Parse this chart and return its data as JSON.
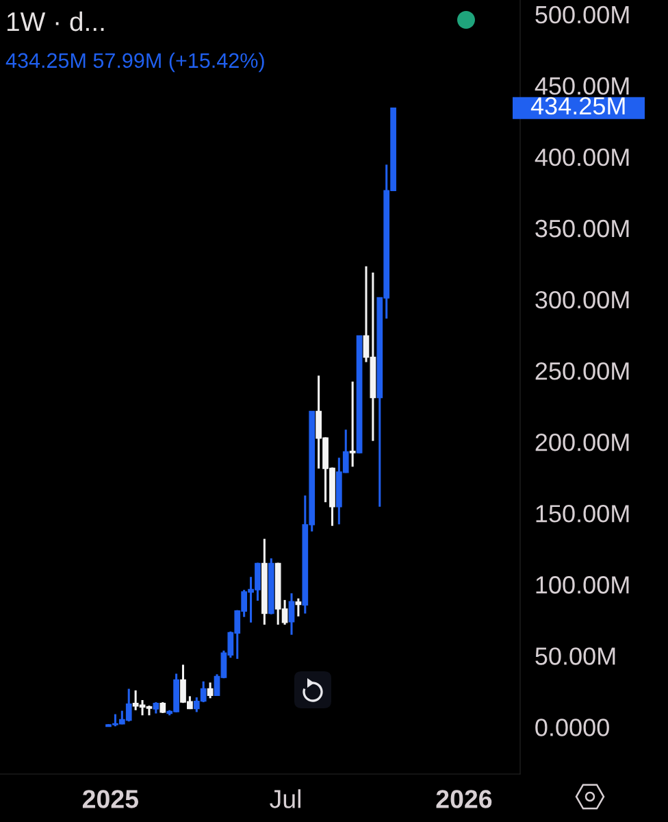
{
  "chart_data": {
    "type": "candlestick",
    "title": "1W · d...",
    "subtitle": "434.25M 57.99M (+15.42%)",
    "x": [
      "2024-12-30",
      "2025-01-06",
      "2025-01-13",
      "2025-01-20",
      "2025-01-27",
      "2025-02-03",
      "2025-02-10",
      "2025-02-17",
      "2025-02-24",
      "2025-03-03",
      "2025-03-10",
      "2025-03-17",
      "2025-03-24",
      "2025-03-31",
      "2025-04-07",
      "2025-04-14",
      "2025-04-21",
      "2025-04-28",
      "2025-05-05",
      "2025-05-12",
      "2025-05-19",
      "2025-05-26",
      "2025-06-02",
      "2025-06-09",
      "2025-06-16",
      "2025-06-23",
      "2025-06-30",
      "2025-07-07",
      "2025-07-14",
      "2025-07-21",
      "2025-07-28",
      "2025-08-04",
      "2025-08-11",
      "2025-08-18",
      "2025-08-25",
      "2025-09-01",
      "2025-09-08",
      "2025-09-15",
      "2025-09-22",
      "2025-09-29",
      "2025-10-06",
      "2025-10-13",
      "2025-10-20"
    ],
    "ohlc": [
      [
        0.4,
        2.0,
        0.3,
        1.6
      ],
      [
        1.6,
        9.0,
        0.5,
        2.4
      ],
      [
        2.2,
        11.4,
        1.9,
        5.2
      ],
      [
        4.7,
        26.8,
        3.9,
        16.2
      ],
      [
        16.6,
        25.7,
        11.8,
        14.7
      ],
      [
        15.5,
        18.9,
        8.2,
        13.9
      ],
      [
        14.2,
        15.0,
        8.2,
        13.1
      ],
      [
        12.6,
        17.4,
        9.5,
        16.7
      ],
      [
        16.7,
        17.4,
        9.8,
        10.3
      ],
      [
        9.5,
        11.8,
        8.2,
        11.0
      ],
      [
        10.7,
        37.4,
        10.3,
        33.1
      ],
      [
        33.1,
        43.7,
        16.9,
        17.4
      ],
      [
        17.8,
        21.6,
        12.6,
        12.9
      ],
      [
        12.9,
        20.8,
        10.5,
        18.1
      ],
      [
        18.1,
        32.0,
        17.4,
        26.8
      ],
      [
        26.8,
        31.2,
        20.2,
        22.1
      ],
      [
        22.1,
        37.0,
        22.1,
        35.5
      ],
      [
        34.7,
        53.6,
        34.2,
        52.0
      ],
      [
        50.5,
        67.0,
        48.6,
        66.2
      ],
      [
        65.9,
        82.0,
        47.8,
        81.5
      ],
      [
        81.2,
        96.2,
        77.2,
        94.9
      ],
      [
        94.6,
        105.3,
        73.3,
        96.5
      ],
      [
        96.2,
        115.2,
        88.6,
        114.8
      ],
      [
        114.8,
        132.0,
        71.8,
        79.6
      ],
      [
        79.6,
        118.3,
        79.1,
        114.8
      ],
      [
        114.8,
        115.2,
        71.8,
        82.8
      ],
      [
        82.8,
        89.1,
        71.8,
        73.3
      ],
      [
        73.8,
        93.8,
        64.7,
        88.0
      ],
      [
        87.8,
        90.2,
        77.6,
        85.9
      ],
      [
        85.5,
        162.4,
        79.6,
        141.9
      ],
      [
        141.9,
        221.5,
        137.2,
        221.5
      ],
      [
        221.5,
        246.5,
        181.3,
        202.6
      ],
      [
        202.9,
        203.2,
        157.7,
        181.3
      ],
      [
        181.6,
        182.0,
        141.1,
        154.5
      ],
      [
        154.5,
        188.9,
        142.2,
        178.9
      ],
      [
        178.5,
        208.6,
        178.3,
        193.1
      ],
      [
        193.5,
        242.3,
        182.6,
        192.4
      ],
      [
        192.4,
        274.4,
        192.0,
        274.4
      ],
      [
        274.4,
        323.2,
        256.0,
        259.4
      ],
      [
        259.4,
        318.8,
        200.7,
        231.0
      ],
      [
        231.0,
        301.2,
        154.5,
        301.2
      ],
      [
        300.9,
        394.5,
        286.5,
        376.3
      ],
      [
        376.3,
        434.25,
        376.3,
        434.25
      ]
    ],
    "colors": [
      "#2060f0",
      "#2060f0",
      "#2060f0",
      "#2060f0",
      "#f4f4f4",
      "#f4f4f4",
      "#f4f4f4",
      "#2060f0",
      "#f4f4f4",
      "#2060f0",
      "#2060f0",
      "#f4f4f4",
      "#f4f4f4",
      "#2060f0",
      "#2060f0",
      "#f4f4f4",
      "#2060f0",
      "#2060f0",
      "#2060f0",
      "#2060f0",
      "#2060f0",
      "#2060f0",
      "#2060f0",
      "#f4f4f4",
      "#2060f0",
      "#f4f4f4",
      "#f4f4f4",
      "#2060f0",
      "#f4f4f4",
      "#2060f0",
      "#2060f0",
      "#f4f4f4",
      "#f4f4f4",
      "#f4f4f4",
      "#2060f0",
      "#2060f0",
      "#f4f4f4",
      "#2060f0",
      "#f4f4f4",
      "#f4f4f4",
      "#2060f0",
      "#2060f0",
      "#2060f0"
    ],
    "xlim": [
      "2024-09-09",
      "2026-02-28"
    ],
    "xticks": [
      {
        "value": "2025-01-01",
        "label": "2025"
      },
      {
        "value": "2025-07-01",
        "label": "Jul"
      },
      {
        "value": "2026-01-01",
        "label": "2026"
      }
    ],
    "ylim": [
      -33,
      510
    ],
    "yticks": [
      {
        "value": 0,
        "label": "0.0000"
      },
      {
        "value": 50,
        "label": "50.00M"
      },
      {
        "value": 100,
        "label": "100.00M"
      },
      {
        "value": 150,
        "label": "150.00M"
      },
      {
        "value": 200,
        "label": "200.00M"
      },
      {
        "value": 250,
        "label": "250.00M"
      },
      {
        "value": 300,
        "label": "300.00M"
      },
      {
        "value": 350,
        "label": "350.00M"
      },
      {
        "value": 400,
        "label": "400.00M"
      },
      {
        "value": 450,
        "label": "450.00M"
      },
      {
        "value": 500,
        "label": "500.00M"
      }
    ],
    "annotations": [
      "434.25M"
    ]
  }
}
